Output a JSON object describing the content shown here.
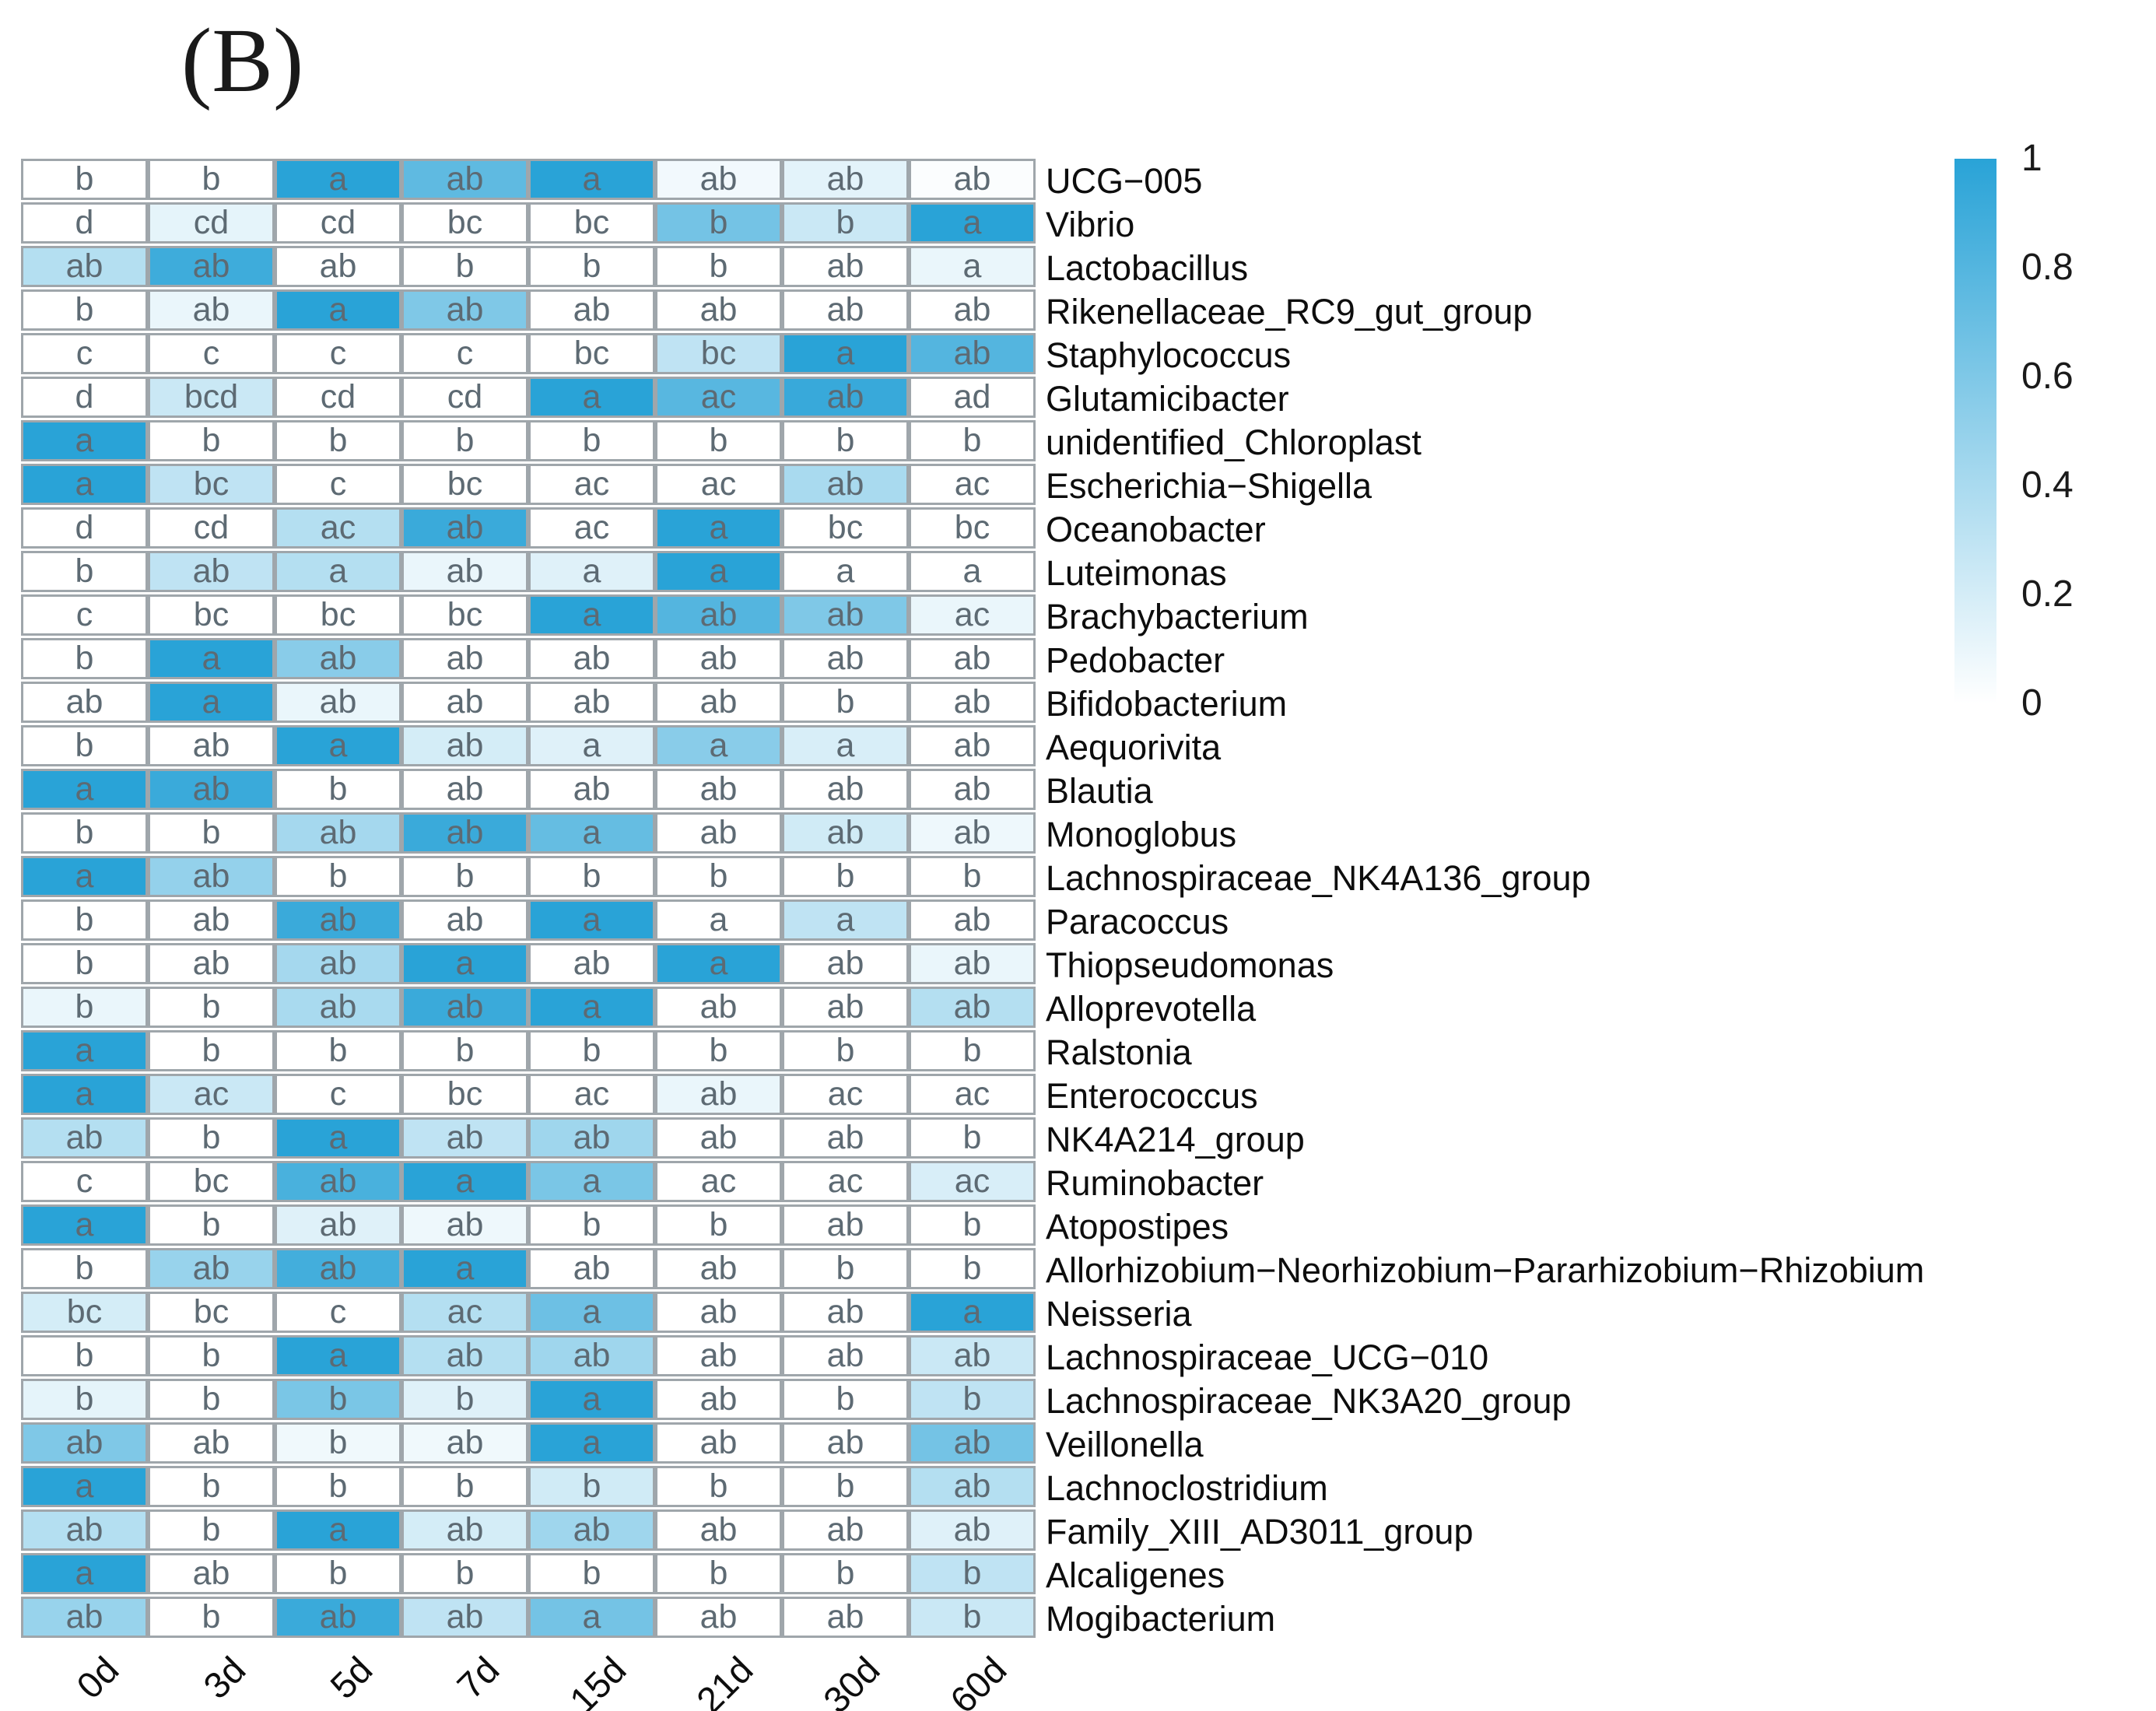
{
  "panel_label": "(B)",
  "colors": {
    "heat_high": "#29a3d7",
    "heat_low": "#ffffff",
    "cell_border": "#9fa6ab",
    "cell_letter": "#5d6a73",
    "label_text": "#0d0d0d"
  },
  "chart_data": {
    "type": "heatmap",
    "title": "",
    "xlabel": "",
    "ylabel": "",
    "grid": "cell-borders",
    "legend_position": "right",
    "columns": [
      "0d",
      "3d",
      "5d",
      "7d",
      "15d",
      "21d",
      "30d",
      "60d"
    ],
    "rows": [
      {
        "name": "UCG−005",
        "letters": [
          "b",
          "b",
          "a",
          "ab",
          "a",
          "ab",
          "ab",
          "ab"
        ],
        "values": [
          0,
          0,
          1,
          0.75,
          1,
          0.06,
          0.13,
          0.02
        ]
      },
      {
        "name": "Vibrio",
        "letters": [
          "d",
          "cd",
          "cd",
          "bc",
          "bc",
          "b",
          "b",
          "a"
        ],
        "values": [
          0,
          0.12,
          0,
          0,
          0,
          0.65,
          0.25,
          1
        ]
      },
      {
        "name": "Lactobacillus",
        "letters": [
          "ab",
          "ab",
          "ab",
          "b",
          "b",
          "b",
          "ab",
          "a"
        ],
        "values": [
          0.35,
          0.9,
          0,
          0,
          0,
          0,
          0,
          0.1
        ]
      },
      {
        "name": "Rikenellaceae_RC9_gut_group",
        "letters": [
          "b",
          "ab",
          "a",
          "ab",
          "ab",
          "ab",
          "ab",
          "ab"
        ],
        "values": [
          0,
          0.1,
          1,
          0.6,
          0,
          0,
          0,
          0
        ]
      },
      {
        "name": "Staphylococcus",
        "letters": [
          "c",
          "c",
          "c",
          "c",
          "bc",
          "bc",
          "a",
          "ab"
        ],
        "values": [
          0,
          0,
          0,
          0,
          0,
          0.3,
          1,
          0.8
        ]
      },
      {
        "name": "Glutamicibacter",
        "letters": [
          "d",
          "bcd",
          "cd",
          "cd",
          "a",
          "ac",
          "ab",
          "ad"
        ],
        "values": [
          0,
          0.25,
          0,
          0,
          1,
          0.78,
          0.93,
          0
        ]
      },
      {
        "name": "unidentified_Chloroplast",
        "letters": [
          "a",
          "b",
          "b",
          "b",
          "b",
          "b",
          "b",
          "b"
        ],
        "values": [
          1,
          0,
          0,
          0,
          0,
          0,
          0,
          0
        ]
      },
      {
        "name": "Escherichia−Shigella",
        "letters": [
          "a",
          "bc",
          "c",
          "bc",
          "ac",
          "ac",
          "ab",
          "ac"
        ],
        "values": [
          1,
          0.3,
          0,
          0,
          0,
          0,
          0.4,
          0
        ]
      },
      {
        "name": "Oceanobacter",
        "letters": [
          "d",
          "cd",
          "ac",
          "ab",
          "ac",
          "a",
          "bc",
          "bc"
        ],
        "values": [
          0,
          0,
          0.35,
          0.92,
          0,
          1,
          0,
          0
        ]
      },
      {
        "name": "Luteimonas",
        "letters": [
          "b",
          "ab",
          "a",
          "ab",
          "a",
          "a",
          "a",
          "a"
        ],
        "values": [
          0,
          0.3,
          0.35,
          0.1,
          0.15,
          1,
          0,
          0
        ]
      },
      {
        "name": "Brachybacterium",
        "letters": [
          "c",
          "bc",
          "bc",
          "bc",
          "a",
          "ab",
          "ab",
          "ac"
        ],
        "values": [
          0,
          0,
          0,
          0,
          1,
          0.8,
          0.6,
          0.1
        ]
      },
      {
        "name": "Pedobacter",
        "letters": [
          "b",
          "a",
          "ab",
          "ab",
          "ab",
          "ab",
          "ab",
          "ab"
        ],
        "values": [
          0,
          1,
          0.55,
          0,
          0,
          0,
          0,
          0
        ]
      },
      {
        "name": "Bifidobacterium",
        "letters": [
          "ab",
          "a",
          "ab",
          "ab",
          "ab",
          "ab",
          "b",
          "ab"
        ],
        "values": [
          0,
          1,
          0.1,
          0,
          0,
          0,
          0,
          0
        ]
      },
      {
        "name": "Aequorivita",
        "letters": [
          "b",
          "ab",
          "a",
          "ab",
          "a",
          "a",
          "a",
          "ab"
        ],
        "values": [
          0,
          0,
          1,
          0.2,
          0.15,
          0.55,
          0.18,
          0
        ]
      },
      {
        "name": "Blautia",
        "letters": [
          "a",
          "ab",
          "b",
          "ab",
          "ab",
          "ab",
          "ab",
          "ab"
        ],
        "values": [
          1,
          0.92,
          0,
          0,
          0,
          0,
          0,
          0
        ]
      },
      {
        "name": "Monoglobus",
        "letters": [
          "b",
          "b",
          "ab",
          "ab",
          "a",
          "ab",
          "ab",
          "ab"
        ],
        "values": [
          0,
          0,
          0.42,
          0.92,
          0.72,
          0,
          0.22,
          0.08
        ]
      },
      {
        "name": "Lachnospiraceae_NK4A136_group",
        "letters": [
          "a",
          "ab",
          "b",
          "b",
          "b",
          "b",
          "b",
          "b"
        ],
        "values": [
          1,
          0.5,
          0,
          0,
          0,
          0,
          0,
          0
        ]
      },
      {
        "name": "Paracoccus",
        "letters": [
          "b",
          "ab",
          "ab",
          "ab",
          "a",
          "a",
          "a",
          "ab"
        ],
        "values": [
          0,
          0,
          0.92,
          0,
          1,
          0,
          0.3,
          0
        ]
      },
      {
        "name": "Thiopseudomonas",
        "letters": [
          "b",
          "ab",
          "ab",
          "a",
          "ab",
          "a",
          "ab",
          "ab"
        ],
        "values": [
          0,
          0,
          0.42,
          1,
          0,
          1,
          0,
          0.1
        ]
      },
      {
        "name": "Alloprevotella",
        "letters": [
          "b",
          "b",
          "ab",
          "ab",
          "a",
          "ab",
          "ab",
          "ab"
        ],
        "values": [
          0.1,
          0,
          0.4,
          0.92,
          1,
          0,
          0,
          0.35
        ]
      },
      {
        "name": "Ralstonia",
        "letters": [
          "a",
          "b",
          "b",
          "b",
          "b",
          "b",
          "b",
          "b"
        ],
        "values": [
          1,
          0,
          0,
          0,
          0,
          0,
          0,
          0
        ]
      },
      {
        "name": "Enterococcus",
        "letters": [
          "a",
          "ac",
          "c",
          "bc",
          "ac",
          "ab",
          "ac",
          "ac"
        ],
        "values": [
          1,
          0.25,
          0,
          0,
          0,
          0.1,
          0,
          0
        ]
      },
      {
        "name": "NK4A214_group",
        "letters": [
          "ab",
          "b",
          "a",
          "ab",
          "ab",
          "ab",
          "ab",
          "b"
        ],
        "values": [
          0.35,
          0,
          1,
          0.3,
          0.45,
          0,
          0,
          0
        ]
      },
      {
        "name": "Ruminobacter",
        "letters": [
          "c",
          "bc",
          "ab",
          "a",
          "a",
          "ac",
          "ac",
          "ac"
        ],
        "values": [
          0,
          0,
          0.85,
          1,
          0.62,
          0,
          0,
          0.18
        ]
      },
      {
        "name": "Atopostipes",
        "letters": [
          "a",
          "b",
          "ab",
          "ab",
          "b",
          "b",
          "ab",
          "b"
        ],
        "values": [
          1,
          0,
          0.15,
          0.08,
          0,
          0,
          0,
          0
        ]
      },
      {
        "name": "Allorhizobium−Neorhizobium−Pararhizobium−Rhizobium",
        "letters": [
          "b",
          "ab",
          "ab",
          "a",
          "ab",
          "ab",
          "b",
          "b"
        ],
        "values": [
          0,
          0.48,
          0.88,
          1,
          0,
          0,
          0,
          0
        ]
      },
      {
        "name": "Neisseria",
        "letters": [
          "bc",
          "bc",
          "c",
          "ac",
          "a",
          "ab",
          "ab",
          "a"
        ],
        "values": [
          0.2,
          0,
          0,
          0.35,
          0.68,
          0,
          0,
          1
        ]
      },
      {
        "name": "Lachnospiraceae_UCG−010",
        "letters": [
          "b",
          "b",
          "a",
          "ab",
          "ab",
          "ab",
          "ab",
          "ab"
        ],
        "values": [
          0,
          0,
          1,
          0.35,
          0.45,
          0,
          0,
          0.25
        ]
      },
      {
        "name": "Lachnospiraceae_NK3A20_group",
        "letters": [
          "b",
          "b",
          "b",
          "b",
          "a",
          "ab",
          "b",
          "b"
        ],
        "values": [
          0.12,
          0,
          0.62,
          0.15,
          1,
          0,
          0,
          0.3
        ]
      },
      {
        "name": "Veillonella",
        "letters": [
          "ab",
          "ab",
          "b",
          "ab",
          "a",
          "ab",
          "ab",
          "ab"
        ],
        "values": [
          0.6,
          0,
          0.07,
          0.07,
          1,
          0,
          0,
          0.65
        ]
      },
      {
        "name": "Lachnoclostridium",
        "letters": [
          "a",
          "b",
          "b",
          "b",
          "b",
          "b",
          "b",
          "ab"
        ],
        "values": [
          1,
          0,
          0,
          0,
          0.22,
          0,
          0,
          0.35
        ]
      },
      {
        "name": "Family_XIII_AD3011_group",
        "letters": [
          "ab",
          "b",
          "a",
          "ab",
          "ab",
          "ab",
          "ab",
          "ab"
        ],
        "values": [
          0.35,
          0,
          1,
          0.2,
          0.45,
          0,
          0,
          0.15
        ]
      },
      {
        "name": "Alcaligenes",
        "letters": [
          "a",
          "ab",
          "b",
          "b",
          "b",
          "b",
          "b",
          "b"
        ],
        "values": [
          1,
          0,
          0,
          0,
          0,
          0,
          0,
          0.3
        ]
      },
      {
        "name": "Mogibacterium",
        "letters": [
          "ab",
          "b",
          "ab",
          "ab",
          "a",
          "ab",
          "ab",
          "b"
        ],
        "values": [
          0.48,
          0,
          0.92,
          0.3,
          0.65,
          0,
          0,
          0.25
        ]
      }
    ],
    "colorbar": {
      "min": 0,
      "max": 1,
      "tick_labels": [
        "1",
        "0.8",
        "0.6",
        "0.4",
        "0.2",
        "0"
      ],
      "tick_values": [
        1,
        0.8,
        0.6,
        0.4,
        0.2,
        0
      ],
      "color_high": "#29a3d7",
      "color_low": "#ffffff"
    }
  }
}
